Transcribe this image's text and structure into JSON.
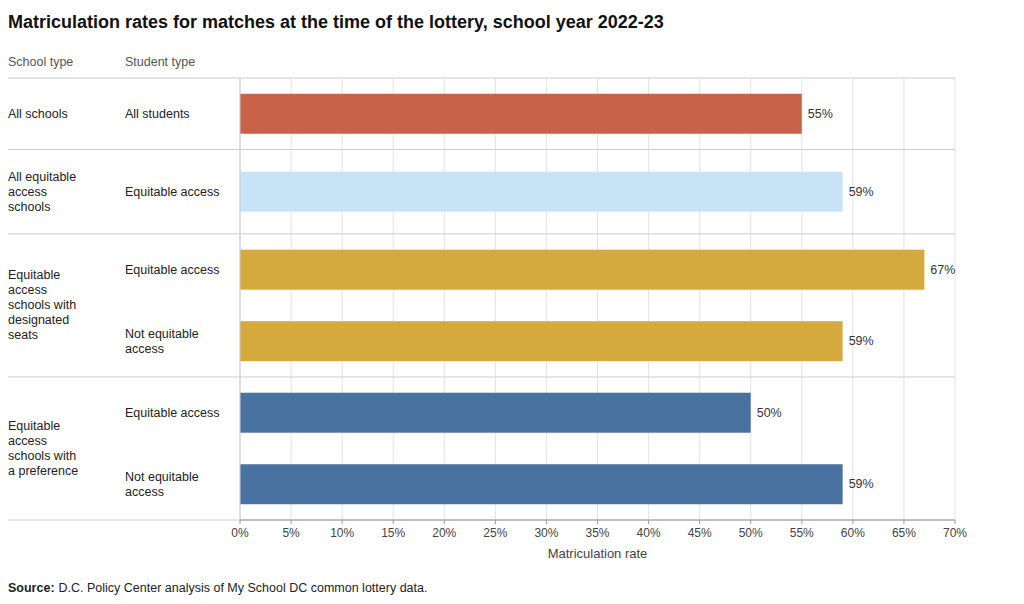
{
  "chart_data": {
    "type": "bar",
    "orientation": "horizontal",
    "title": "Matriculation rates for matches at the time of the lottery, school year 2022-23",
    "xlabel": "Matriculation rate",
    "column_headers": [
      "School type",
      "Student type"
    ],
    "category_groups": [
      "All schools",
      "All equitable\naccess\nschools",
      "Equitable\naccess\nschools with\ndesignated\nseats",
      "Equitable\naccess\nschools with\ndesignated\nseats",
      "Equitable\naccess\nschools with\na preference",
      "Equitable\naccess\nschools with\na preference"
    ],
    "categories": [
      "All students",
      "Equitable access",
      "Equitable access",
      "Not equitable\naccess",
      "Equitable access",
      "Not equitable\naccess"
    ],
    "values": [
      55,
      59,
      67,
      59,
      50,
      59
    ],
    "value_labels": [
      "55%",
      "59%",
      "67%",
      "59%",
      "50%",
      "59%"
    ],
    "data_labels": true,
    "colors": [
      "#C8634A",
      "#C8E3F5",
      "#D4AA3F",
      "#D4AA3F",
      "#4A72A0",
      "#4A72A0"
    ],
    "xlim": [
      0,
      70
    ],
    "xticks": [
      {
        "value": 0,
        "label": "0%"
      },
      {
        "value": 5,
        "label": "5%"
      },
      {
        "value": 10,
        "label": "10%"
      },
      {
        "value": 15,
        "label": "15%"
      },
      {
        "value": 20,
        "label": "20%"
      },
      {
        "value": 25,
        "label": "25%"
      },
      {
        "value": 30,
        "label": "30%"
      },
      {
        "value": 35,
        "label": "35%"
      },
      {
        "value": 40,
        "label": "40%"
      },
      {
        "value": 45,
        "label": "45%"
      },
      {
        "value": 50,
        "label": "50%"
      },
      {
        "value": 55,
        "label": "55%"
      },
      {
        "value": 60,
        "label": "60%"
      },
      {
        "value": 65,
        "label": "65%"
      },
      {
        "value": 70,
        "label": "70%"
      }
    ],
    "grid": true,
    "source_label": "Source:",
    "source": "D.C. Policy Center analysis of My School DC common lottery data."
  }
}
